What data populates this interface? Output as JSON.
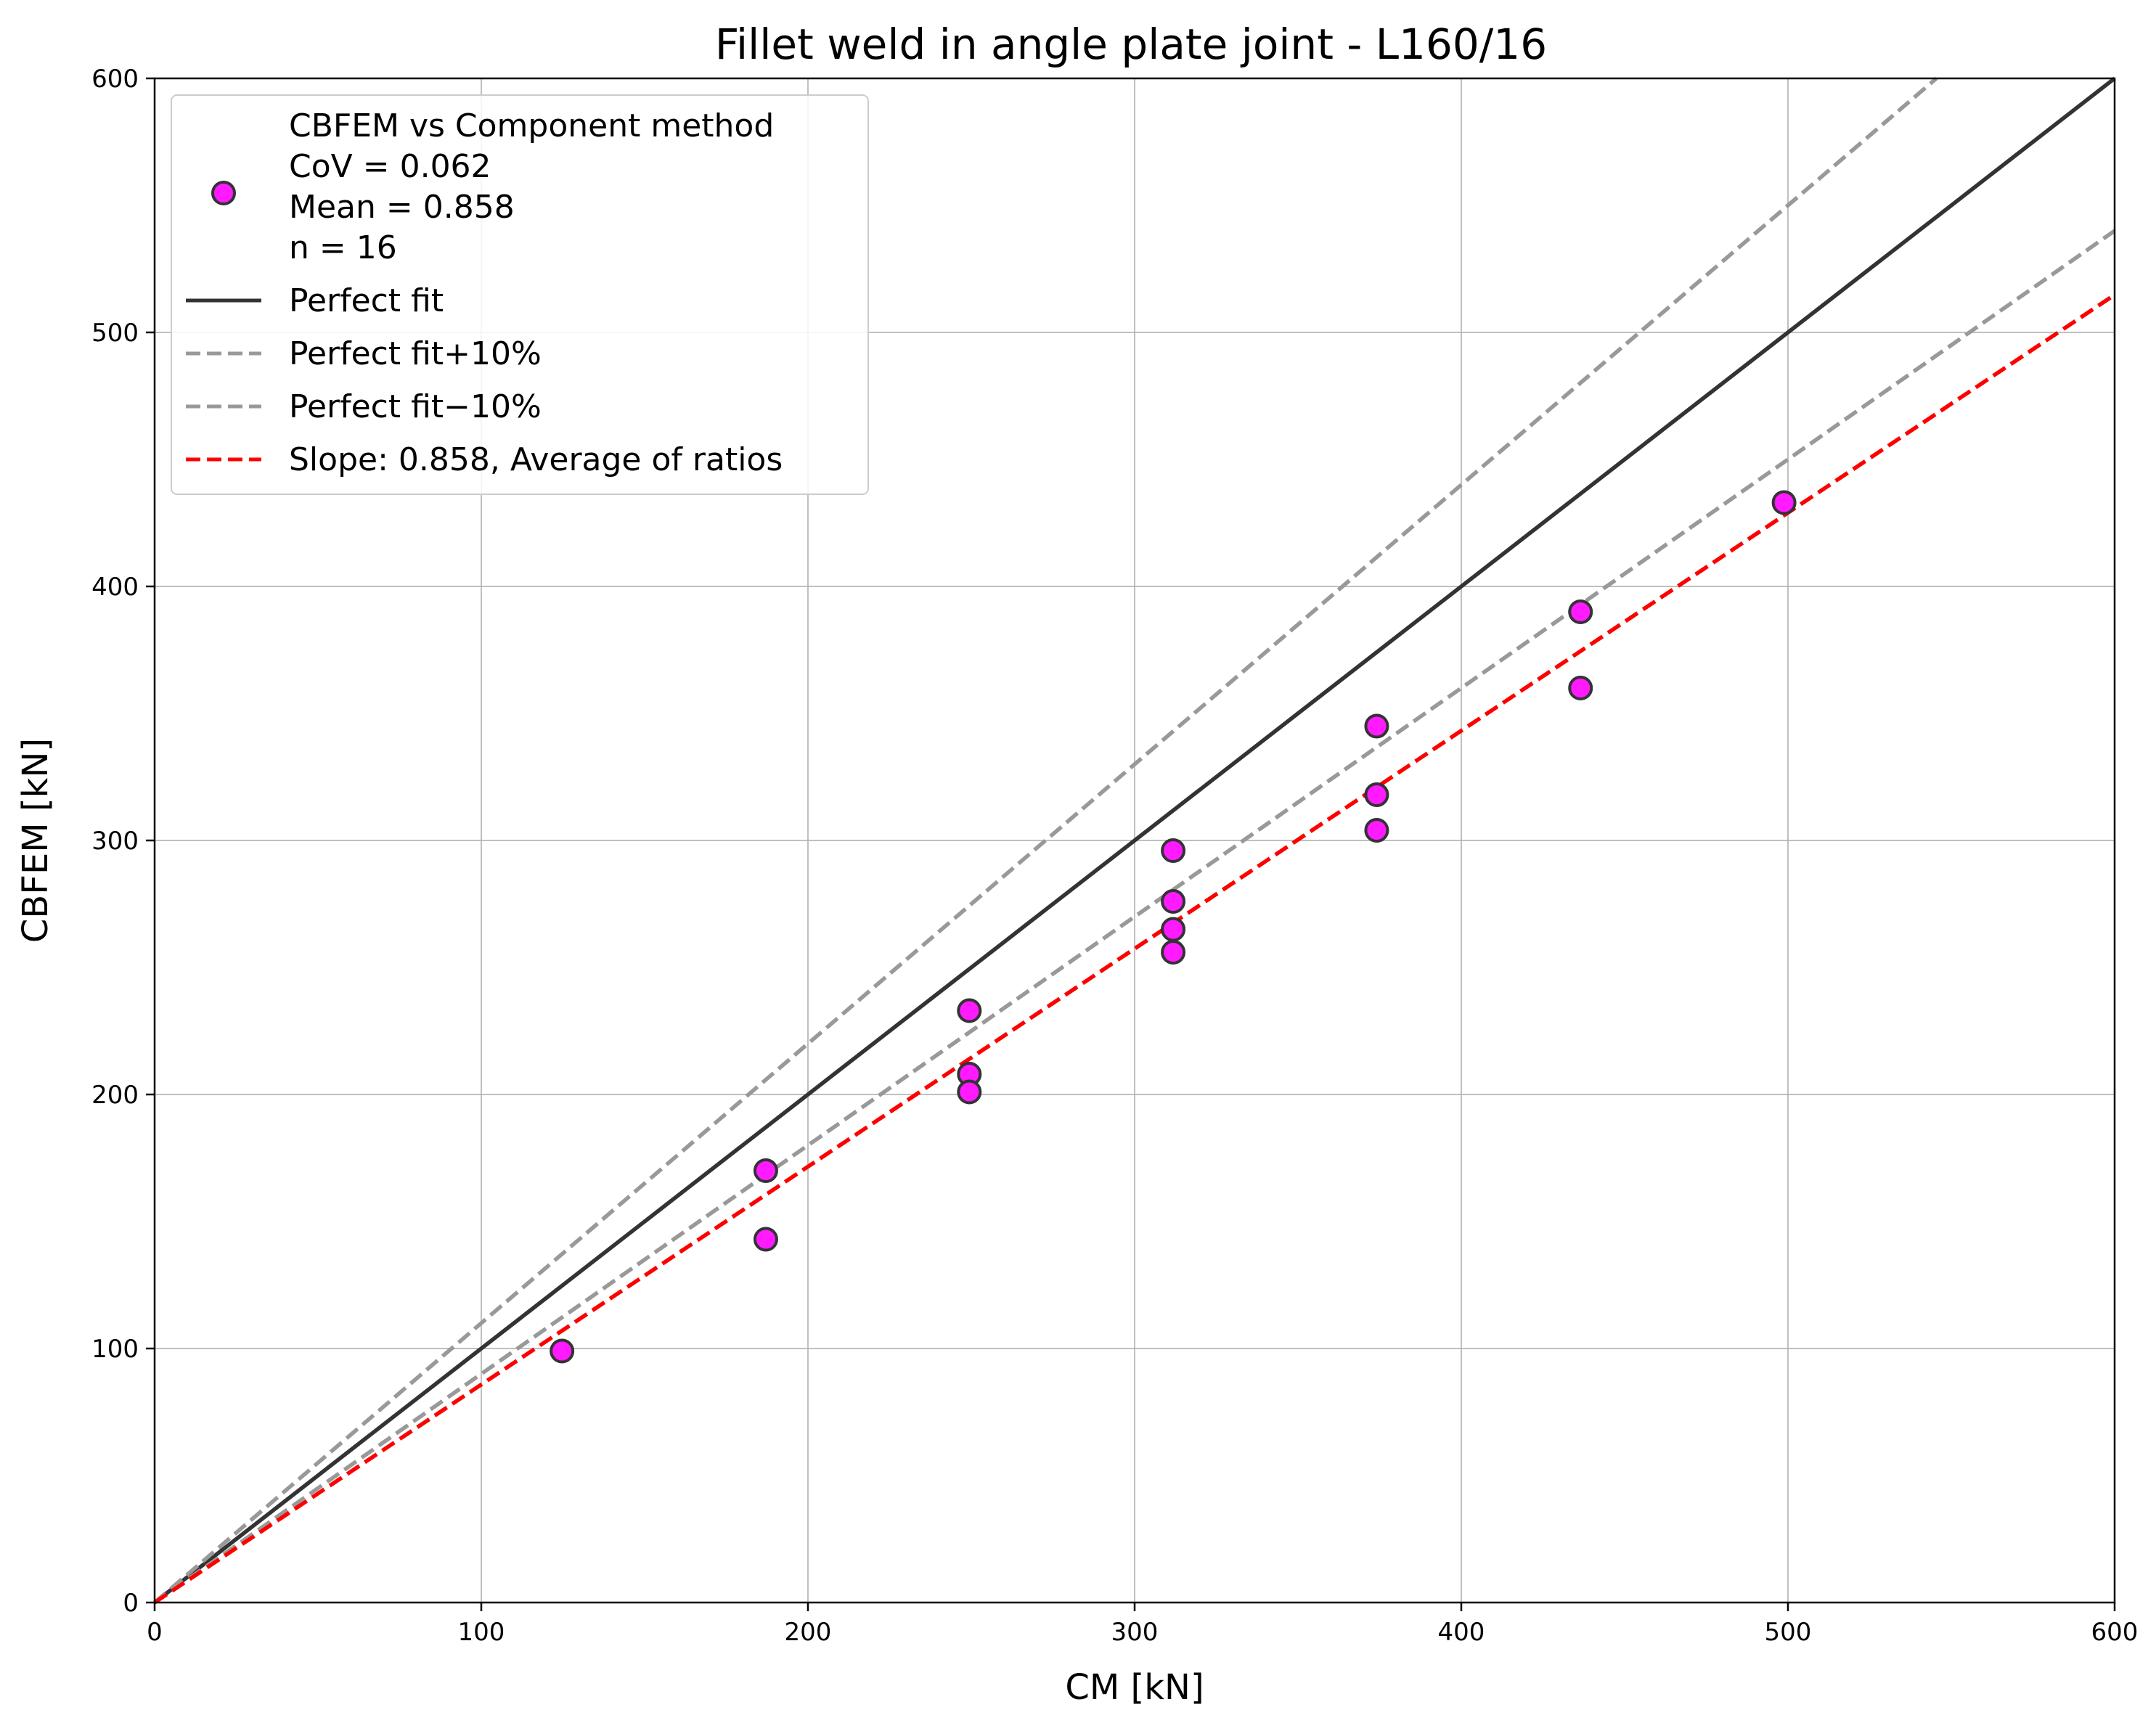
{
  "chart_data": {
    "type": "scatter",
    "title": "Fillet weld in angle plate joint - L160/16",
    "xlabel": "CM [kN]",
    "ylabel": "CBFEM [kN]",
    "xlim": [
      0,
      600
    ],
    "ylim": [
      0,
      600
    ],
    "xticks": [
      "0",
      "100",
      "200",
      "300",
      "400",
      "500",
      "600"
    ],
    "yticks": [
      "0",
      "100",
      "200",
      "300",
      "400",
      "500",
      "600"
    ],
    "grid": true,
    "legend_position": "top-left",
    "scatter": {
      "name": "CBFEM vs Component method",
      "stats": [
        "CoV = 0.062",
        "Mean = 0.858",
        "n = 16"
      ],
      "fill": "#ff1aff",
      "edge": "#333333",
      "points": [
        [
          124.7,
          99
        ],
        [
          187.1,
          170
        ],
        [
          187.1,
          143
        ],
        [
          249.4,
          233
        ],
        [
          249.4,
          208
        ],
        [
          249.4,
          201
        ],
        [
          311.8,
          296
        ],
        [
          311.8,
          276
        ],
        [
          311.8,
          265
        ],
        [
          311.8,
          256
        ],
        [
          374.1,
          345
        ],
        [
          374.1,
          318
        ],
        [
          374.1,
          304
        ],
        [
          436.5,
          390
        ],
        [
          436.5,
          360
        ],
        [
          498.8,
          433
        ]
      ]
    },
    "lines": [
      {
        "name": "Perfect fit",
        "slope": 1.0,
        "color": "#333333",
        "dash": "solid"
      },
      {
        "name": "Perfect fit+10%",
        "slope": 1.1,
        "color": "#999999",
        "dash": "dashed"
      },
      {
        "name": "Perfect fit−10%",
        "slope": 0.9,
        "color": "#999999",
        "dash": "dashed"
      },
      {
        "name": "Slope: 0.858, Average of ratios",
        "slope": 0.858,
        "color": "#ff0000",
        "dash": "dashed"
      }
    ]
  }
}
